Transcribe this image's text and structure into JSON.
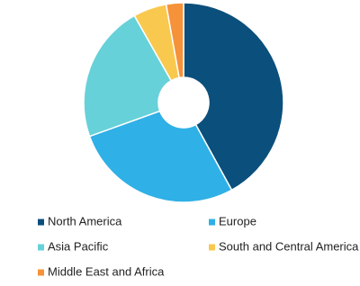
{
  "chart_data": {
    "type": "donut",
    "categories": [
      "North America",
      "Europe",
      "Asia Pacific",
      "South and Central America",
      "Middle East and Africa"
    ],
    "values": [
      42,
      27.5,
      22.3,
      5.4,
      2.8
    ],
    "colors": [
      "#0b4f7c",
      "#2fb0e6",
      "#67d1d9",
      "#f9c84e",
      "#f5923a"
    ]
  }
}
